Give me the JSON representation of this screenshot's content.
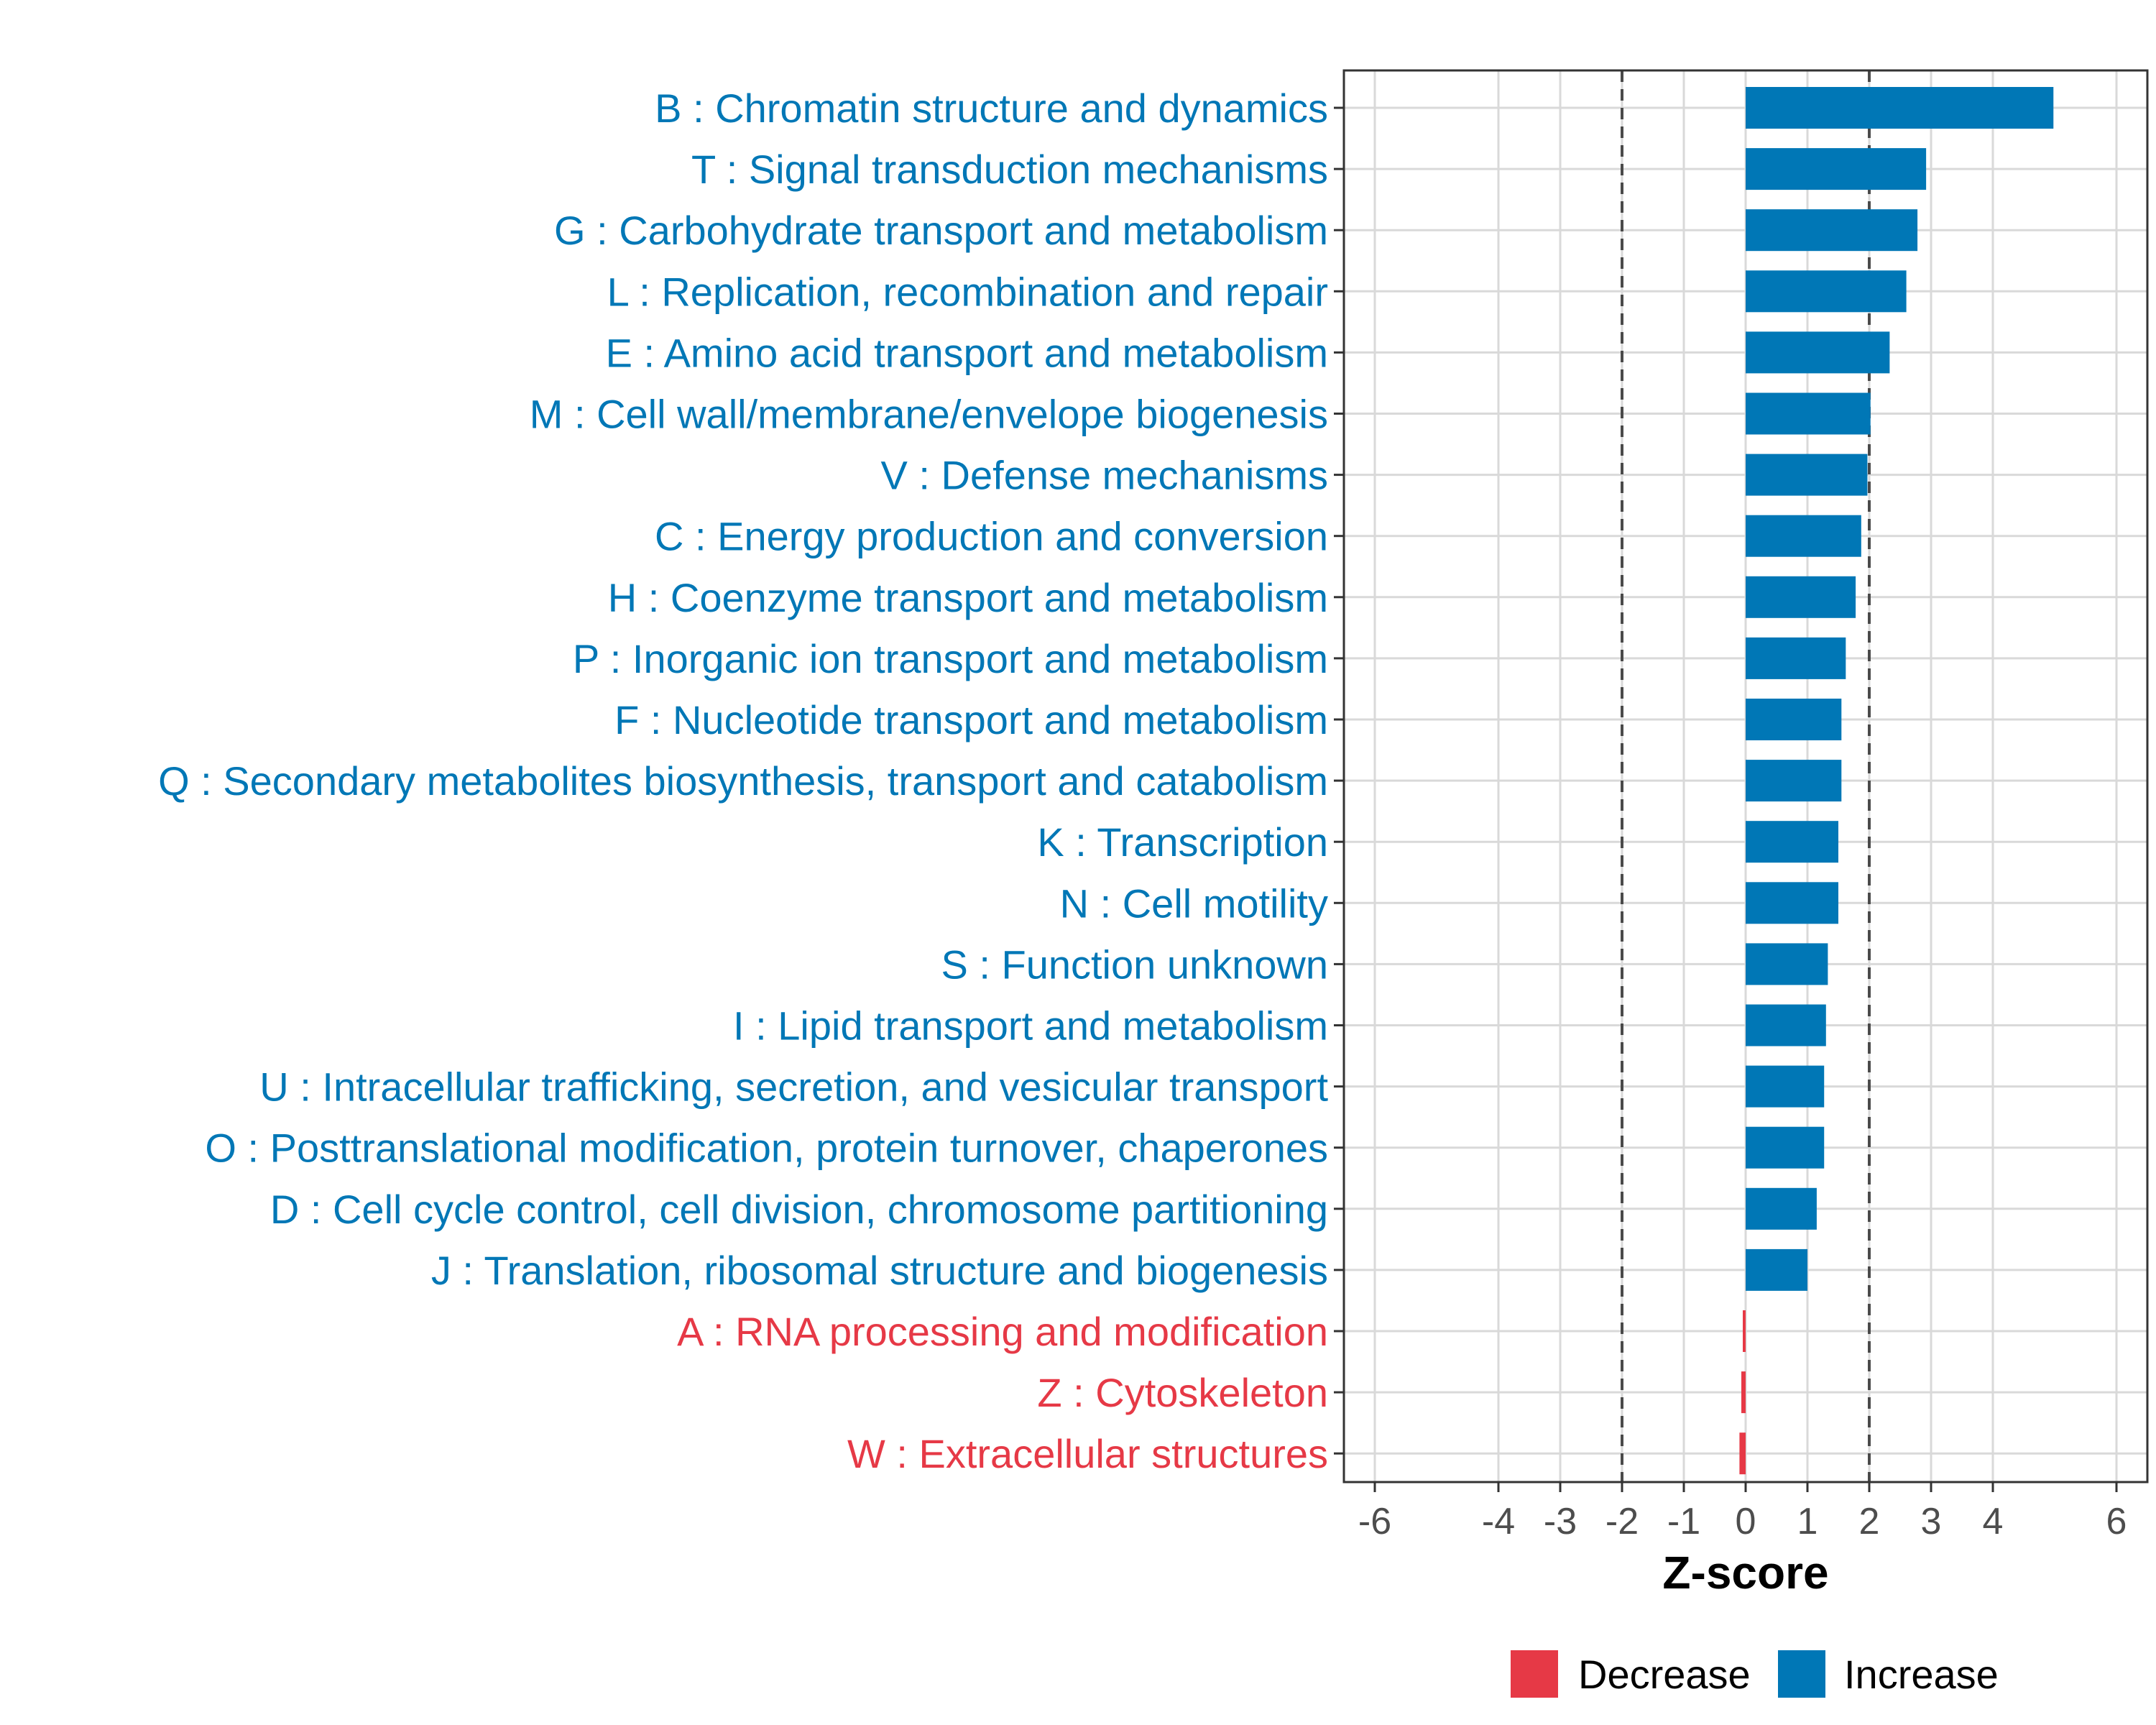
{
  "chart_data": {
    "type": "bar",
    "orientation": "horizontal",
    "categories": [
      "B : Chromatin structure and dynamics",
      "T : Signal transduction mechanisms",
      "G : Carbohydrate transport and metabolism",
      "L : Replication, recombination and repair",
      "E : Amino acid transport and metabolism",
      "M : Cell wall/membrane/envelope biogenesis",
      "V : Defense mechanisms",
      "C : Energy production and conversion",
      "H : Coenzyme transport and metabolism",
      "P : Inorganic ion transport and metabolism",
      "F : Nucleotide transport and metabolism",
      "Q : Secondary metabolites biosynthesis, transport and catabolism",
      "K : Transcription",
      "N : Cell motility",
      "S : Function unknown",
      "I : Lipid transport and metabolism",
      "U : Intracellular trafficking, secretion, and vesicular transport",
      "O : Posttranslational modification, protein turnover, chaperones",
      "D : Cell cycle control, cell division, chromosome partitioning",
      "J : Translation, ribosomal structure and biogenesis",
      "A : RNA processing and modification",
      "Z : Cytoskeleton",
      "W : Extracellular structures"
    ],
    "values": [
      4.98,
      2.92,
      2.78,
      2.6,
      2.33,
      2.02,
      1.97,
      1.87,
      1.78,
      1.62,
      1.55,
      1.55,
      1.5,
      1.5,
      1.33,
      1.3,
      1.27,
      1.27,
      1.15,
      1.0,
      -0.03,
      -0.07,
      -0.1
    ],
    "groups": [
      "Increase",
      "Increase",
      "Increase",
      "Increase",
      "Increase",
      "Increase",
      "Increase",
      "Increase",
      "Increase",
      "Increase",
      "Increase",
      "Increase",
      "Increase",
      "Increase",
      "Increase",
      "Increase",
      "Increase",
      "Increase",
      "Increase",
      "Increase",
      "Decrease",
      "Decrease",
      "Decrease"
    ],
    "xlabel": "Z-score",
    "ylabel": "",
    "xlim": [
      -6.5,
      6.5
    ],
    "xticks": [
      -6,
      -4,
      -3,
      -2,
      -1,
      0,
      1,
      2,
      3,
      4,
      6
    ],
    "xtick_labels": [
      "-6",
      "-4",
      "-3",
      "-2",
      "-1",
      "0",
      "1",
      "2",
      "3",
      "4",
      "6"
    ],
    "reference_lines": [
      -2,
      2
    ],
    "grid": true,
    "legend": {
      "position": "bottom",
      "entries": [
        {
          "label": "Decrease",
          "color": "#E63946"
        },
        {
          "label": "Increase",
          "color": "#0077B6"
        }
      ]
    },
    "colors": {
      "Increase": "#0077B6",
      "Decrease": "#E63946"
    }
  }
}
